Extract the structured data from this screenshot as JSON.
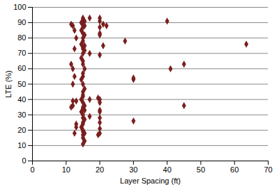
{
  "chart_data": {
    "type": "scatter",
    "x_label": "Layer Spacing (ft)",
    "y_label": "LTE (%)",
    "x": [
      11.5,
      12,
      12.5,
      11.5,
      12,
      12.5,
      12,
      12,
      11.5,
      12.5,
      13,
      13,
      12.5,
      12,
      13,
      13,
      15,
      15,
      15.5,
      14.5,
      15,
      15.5,
      15,
      14.5,
      15,
      15.5,
      15,
      15,
      14.5,
      15.5,
      15,
      15,
      15.5,
      15,
      14.5,
      15,
      15,
      15.5,
      15,
      15,
      14.5,
      15,
      15.5,
      15,
      15,
      15,
      14.5,
      15,
      15.5,
      15,
      15,
      15.5,
      14.5,
      15,
      15,
      15.5,
      15,
      15,
      14.5,
      15,
      15,
      15.5,
      15,
      15,
      15.5,
      15,
      17,
      17,
      17,
      17,
      20,
      20,
      20,
      20,
      20,
      20,
      19.5,
      20,
      20,
      20,
      20,
      20,
      20,
      20,
      20,
      19.5,
      21,
      21,
      22,
      27.5,
      30,
      30,
      30,
      40,
      41,
      45,
      45,
      63.5
    ],
    "values": [
      89,
      88,
      85,
      63,
      60,
      73,
      39,
      36,
      35,
      18,
      24,
      22,
      55,
      50,
      39,
      80,
      93,
      92,
      91,
      90,
      89,
      88,
      87,
      85,
      83,
      82,
      80,
      78,
      76,
      75,
      74,
      73,
      72,
      70,
      67,
      65,
      63,
      60,
      57,
      55,
      53,
      50,
      47,
      45,
      43,
      42,
      40,
      38,
      36,
      35,
      34,
      33,
      32,
      30,
      28,
      27,
      25,
      24,
      22,
      20,
      19,
      18,
      17,
      15,
      13,
      11,
      93,
      70,
      40,
      29,
      93,
      91,
      87,
      83,
      82,
      69,
      41,
      40,
      38,
      33,
      32,
      28,
      25,
      21,
      18,
      17,
      75,
      89,
      88,
      78,
      54,
      53,
      26,
      91,
      60,
      63,
      36,
      76
    ],
    "color": "#7a1f1f",
    "marker": "diamond",
    "xlim": [
      0,
      70
    ],
    "xticks": [
      0,
      10,
      20,
      30,
      40,
      50,
      60,
      70
    ],
    "ylim": [
      0,
      100
    ],
    "yticks": [
      0,
      10,
      20,
      30,
      40,
      50,
      60,
      70,
      80,
      90,
      100
    ],
    "grid": true
  }
}
